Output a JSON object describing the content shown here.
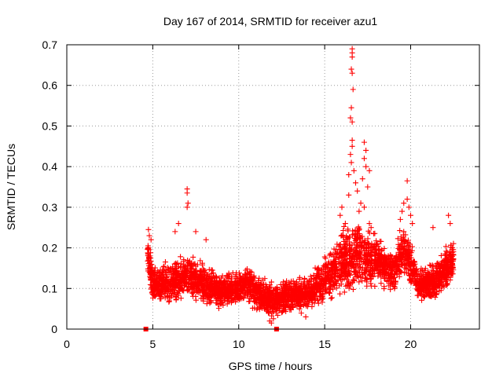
{
  "chart_data": {
    "type": "scatter",
    "title": "Day 167 of 2014, SRMTID for receiver azu1",
    "xlabel": "GPS time / hours",
    "ylabel": "SRMTID / TECUs",
    "xlim": [
      0,
      24
    ],
    "ylim": [
      0,
      0.7
    ],
    "xticks": [
      0,
      5,
      10,
      15,
      20
    ],
    "yticks": [
      0,
      0.1,
      0.2,
      0.3,
      0.4,
      0.5,
      0.6,
      0.7
    ],
    "grid": true,
    "marker": "+",
    "color": "#ff0000",
    "zero_markers": [
      4.6,
      12.2
    ],
    "envelope": [
      {
        "x": 4.7,
        "mean": 0.19,
        "spread": 0.06
      },
      {
        "x": 5.0,
        "mean": 0.11,
        "spread": 0.05
      },
      {
        "x": 6.0,
        "mean": 0.115,
        "spread": 0.06
      },
      {
        "x": 7.0,
        "mean": 0.13,
        "spread": 0.07
      },
      {
        "x": 8.0,
        "mean": 0.11,
        "spread": 0.06
      },
      {
        "x": 9.0,
        "mean": 0.095,
        "spread": 0.05
      },
      {
        "x": 10.0,
        "mean": 0.1,
        "spread": 0.05
      },
      {
        "x": 10.5,
        "mean": 0.12,
        "spread": 0.06
      },
      {
        "x": 11.0,
        "mean": 0.09,
        "spread": 0.05
      },
      {
        "x": 12.0,
        "mean": 0.07,
        "spread": 0.05
      },
      {
        "x": 13.0,
        "mean": 0.085,
        "spread": 0.05
      },
      {
        "x": 14.0,
        "mean": 0.085,
        "spread": 0.05
      },
      {
        "x": 15.0,
        "mean": 0.12,
        "spread": 0.07
      },
      {
        "x": 16.0,
        "mean": 0.17,
        "spread": 0.1
      },
      {
        "x": 17.0,
        "mean": 0.18,
        "spread": 0.1
      },
      {
        "x": 18.0,
        "mean": 0.17,
        "spread": 0.07
      },
      {
        "x": 19.0,
        "mean": 0.14,
        "spread": 0.06
      },
      {
        "x": 19.6,
        "mean": 0.2,
        "spread": 0.08
      },
      {
        "x": 20.5,
        "mean": 0.11,
        "spread": 0.05
      },
      {
        "x": 21.5,
        "mean": 0.12,
        "spread": 0.06
      },
      {
        "x": 22.5,
        "mean": 0.17,
        "spread": 0.07
      }
    ],
    "peaks": [
      {
        "x": 4.75,
        "y": 0.245
      },
      {
        "x": 4.8,
        "y": 0.23
      },
      {
        "x": 4.9,
        "y": 0.22
      },
      {
        "x": 6.3,
        "y": 0.24
      },
      {
        "x": 6.5,
        "y": 0.26
      },
      {
        "x": 7.0,
        "y": 0.345
      },
      {
        "x": 7.0,
        "y": 0.335
      },
      {
        "x": 7.05,
        "y": 0.31
      },
      {
        "x": 7.0,
        "y": 0.3
      },
      {
        "x": 7.5,
        "y": 0.24
      },
      {
        "x": 8.1,
        "y": 0.22
      },
      {
        "x": 16.6,
        "y": 0.69
      },
      {
        "x": 16.6,
        "y": 0.68
      },
      {
        "x": 16.6,
        "y": 0.67
      },
      {
        "x": 16.55,
        "y": 0.64
      },
      {
        "x": 16.6,
        "y": 0.63
      },
      {
        "x": 16.65,
        "y": 0.59
      },
      {
        "x": 16.55,
        "y": 0.545
      },
      {
        "x": 16.5,
        "y": 0.52
      },
      {
        "x": 16.6,
        "y": 0.51
      },
      {
        "x": 16.6,
        "y": 0.465
      },
      {
        "x": 16.6,
        "y": 0.45
      },
      {
        "x": 16.5,
        "y": 0.43
      },
      {
        "x": 16.55,
        "y": 0.41
      },
      {
        "x": 16.7,
        "y": 0.39
      },
      {
        "x": 16.4,
        "y": 0.38
      },
      {
        "x": 16.8,
        "y": 0.36
      },
      {
        "x": 16.4,
        "y": 0.33
      },
      {
        "x": 16.9,
        "y": 0.34
      },
      {
        "x": 17.1,
        "y": 0.31
      },
      {
        "x": 17.0,
        "y": 0.29
      },
      {
        "x": 17.3,
        "y": 0.3
      },
      {
        "x": 17.3,
        "y": 0.46
      },
      {
        "x": 17.4,
        "y": 0.44
      },
      {
        "x": 17.3,
        "y": 0.42
      },
      {
        "x": 17.4,
        "y": 0.4
      },
      {
        "x": 17.6,
        "y": 0.39
      },
      {
        "x": 17.2,
        "y": 0.37
      },
      {
        "x": 17.5,
        "y": 0.35
      },
      {
        "x": 17.6,
        "y": 0.26
      },
      {
        "x": 17.7,
        "y": 0.25
      },
      {
        "x": 15.9,
        "y": 0.28
      },
      {
        "x": 16.0,
        "y": 0.3
      },
      {
        "x": 16.2,
        "y": 0.26
      },
      {
        "x": 19.6,
        "y": 0.31
      },
      {
        "x": 19.8,
        "y": 0.365
      },
      {
        "x": 19.8,
        "y": 0.32
      },
      {
        "x": 19.9,
        "y": 0.3
      },
      {
        "x": 19.5,
        "y": 0.29
      },
      {
        "x": 20.0,
        "y": 0.28
      },
      {
        "x": 19.4,
        "y": 0.27
      },
      {
        "x": 20.1,
        "y": 0.26
      },
      {
        "x": 22.2,
        "y": 0.28
      },
      {
        "x": 22.3,
        "y": 0.26
      },
      {
        "x": 21.3,
        "y": 0.25
      },
      {
        "x": 11.9,
        "y": 0.015
      },
      {
        "x": 11.8,
        "y": 0.02
      },
      {
        "x": 13.9,
        "y": 0.03
      }
    ],
    "noise_points_per_hour": 200
  }
}
